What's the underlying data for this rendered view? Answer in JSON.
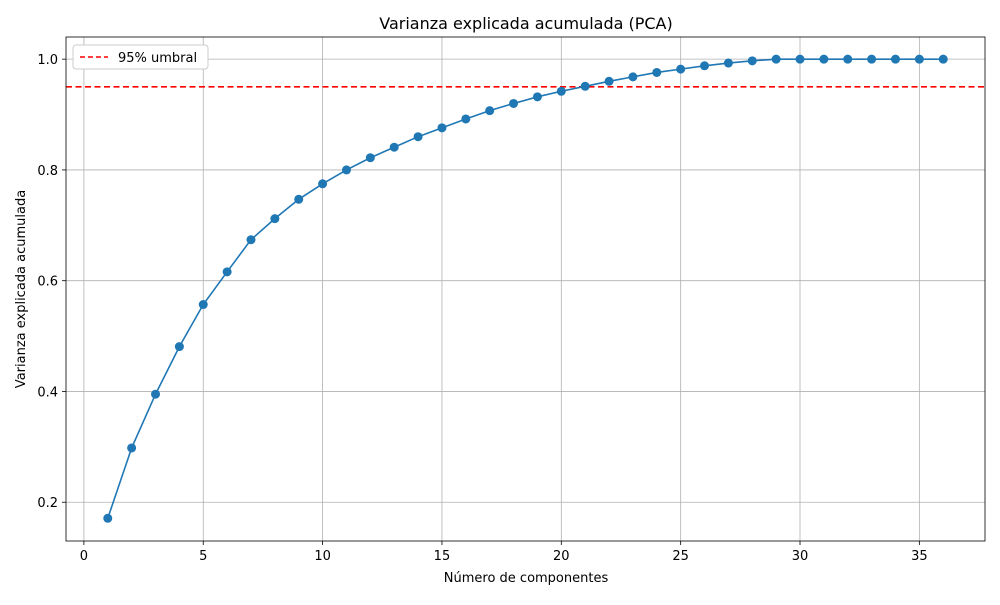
{
  "chart_data": {
    "type": "line",
    "title": "Varianza explicada acumulada (PCA)",
    "xlabel": "Número de componentes",
    "ylabel": "Varianza explicada acumulada",
    "xlim": [
      -0.75,
      37.75
    ],
    "ylim": [
      0.13,
      1.04
    ],
    "xticks": [
      0,
      5,
      10,
      15,
      20,
      25,
      30,
      35
    ],
    "xtick_labels": [
      "0",
      "5",
      "10",
      "15",
      "20",
      "25",
      "30",
      "35"
    ],
    "yticks": [
      0.2,
      0.4,
      0.6,
      0.8,
      1.0
    ],
    "ytick_labels": [
      "0.2",
      "0.4",
      "0.6",
      "0.8",
      "1.0"
    ],
    "grid": true,
    "legend_position": "top-left",
    "series": [
      {
        "color": "#1f77b4",
        "marker": "circle",
        "x": [
          1,
          2,
          3,
          4,
          5,
          6,
          7,
          8,
          9,
          10,
          11,
          12,
          13,
          14,
          15,
          16,
          17,
          18,
          19,
          20,
          21,
          22,
          23,
          24,
          25,
          26,
          27,
          28,
          29,
          30,
          31,
          32,
          33,
          34,
          35,
          36
        ],
        "y": [
          0.171,
          0.298,
          0.395,
          0.481,
          0.557,
          0.616,
          0.674,
          0.712,
          0.747,
          0.775,
          0.8,
          0.822,
          0.841,
          0.86,
          0.876,
          0.892,
          0.907,
          0.92,
          0.932,
          0.942,
          0.951,
          0.96,
          0.968,
          0.976,
          0.982,
          0.988,
          0.993,
          0.997,
          1.0,
          1.0,
          1.0,
          1.0,
          1.0,
          1.0,
          1.0,
          1.0
        ]
      }
    ],
    "threshold": {
      "name": "95% umbral",
      "value": 0.95,
      "color": "#ff0000",
      "style": "dashed"
    }
  }
}
